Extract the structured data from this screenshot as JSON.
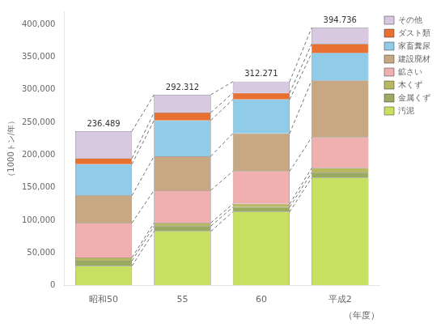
{
  "chart_data": {
    "type": "bar",
    "stacked": true,
    "categories": [
      "昭和50",
      "55",
      "60",
      "平成2"
    ],
    "series": [
      {
        "name": "汚泥",
        "color": "#c8e060",
        "values": [
          30000,
          83000,
          113000,
          165000
        ]
      },
      {
        "name": "金属くず",
        "color": "#9aaa60",
        "values": [
          8000,
          8000,
          7000,
          8000
        ]
      },
      {
        "name": "木くず",
        "color": "#b8b860",
        "values": [
          5000,
          5000,
          5000,
          7000
        ]
      },
      {
        "name": "鉱さい",
        "color": "#f0b0b0",
        "values": [
          53000,
          50000,
          50000,
          47000
        ]
      },
      {
        "name": "建設廃材",
        "color": "#c8a882",
        "values": [
          42000,
          52000,
          58000,
          87000
        ]
      },
      {
        "name": "家畜糞尿",
        "color": "#90cce8",
        "values": [
          48000,
          55000,
          52000,
          42000
        ]
      },
      {
        "name": "ダスト類",
        "color": "#e87030",
        "values": [
          9000,
          12000,
          10000,
          14000
        ]
      },
      {
        "name": "その他",
        "color": "#d8c8e0",
        "values": [
          41489,
          27312,
          17271,
          24736
        ]
      }
    ],
    "xlabel": "（年度）",
    "ylabel": "（1000トン/年）",
    "ylim": [
      0,
      420000
    ],
    "yticks": [
      0,
      {
        "value": 50000,
        "label": "50,000"
      },
      {
        "value": 100000,
        "label": "100,000"
      },
      {
        "value": 150000,
        "label": "150,000"
      },
      {
        "value": 200000,
        "label": "200,000"
      },
      {
        "value": 250000,
        "label": "250,000"
      },
      {
        "value": 300000,
        "label": "300,000"
      },
      {
        "value": 350000,
        "label": "350,000"
      },
      {
        "value": 400000,
        "label": "400,000"
      }
    ],
    "grid": false,
    "legend": "right",
    "annotations": [
      {
        "x": "昭和50",
        "y": 236489,
        "text": "236.489"
      },
      {
        "x": "55",
        "y": 292312,
        "text": "292.312"
      },
      {
        "x": "60",
        "y": 312271,
        "text": "312.271"
      },
      {
        "x": "平成2",
        "y": 394736,
        "text": "394.736"
      }
    ]
  }
}
